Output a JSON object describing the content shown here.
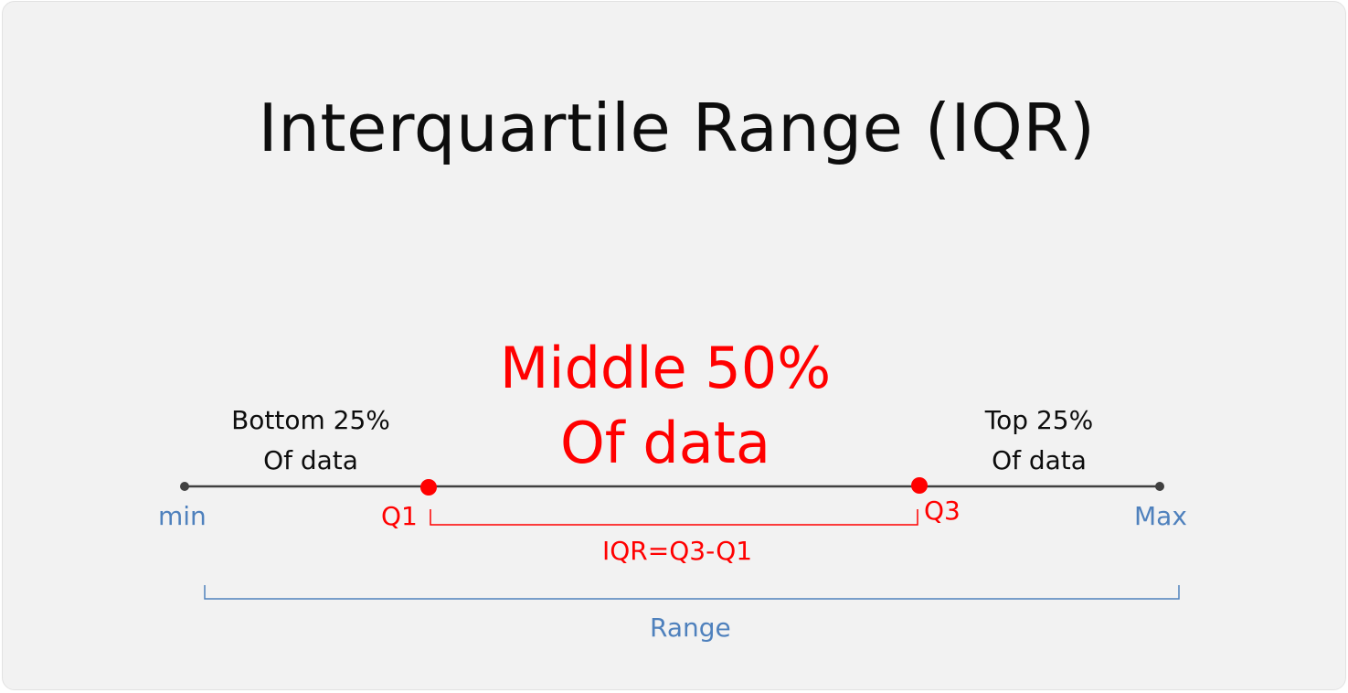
{
  "title": "Interquartile Range (IQR)",
  "middle": {
    "line1": "Middle 50%",
    "line2": "Of data"
  },
  "bottom_segment": {
    "line1": "Bottom 25%",
    "line2": "Of data"
  },
  "top_segment": {
    "line1": "Top 25%",
    "line2": "Of data"
  },
  "points": {
    "min": "min",
    "q1": "Q1",
    "q3": "Q3",
    "max": "Max"
  },
  "iqr_label": "IQR=Q3-Q1",
  "range_label": "Range",
  "colors": {
    "background": "#f2f2f2",
    "text": "#0d0d0d",
    "line": "#404040",
    "accent_red": "#ff0000",
    "accent_blue": "#4f81bd"
  }
}
